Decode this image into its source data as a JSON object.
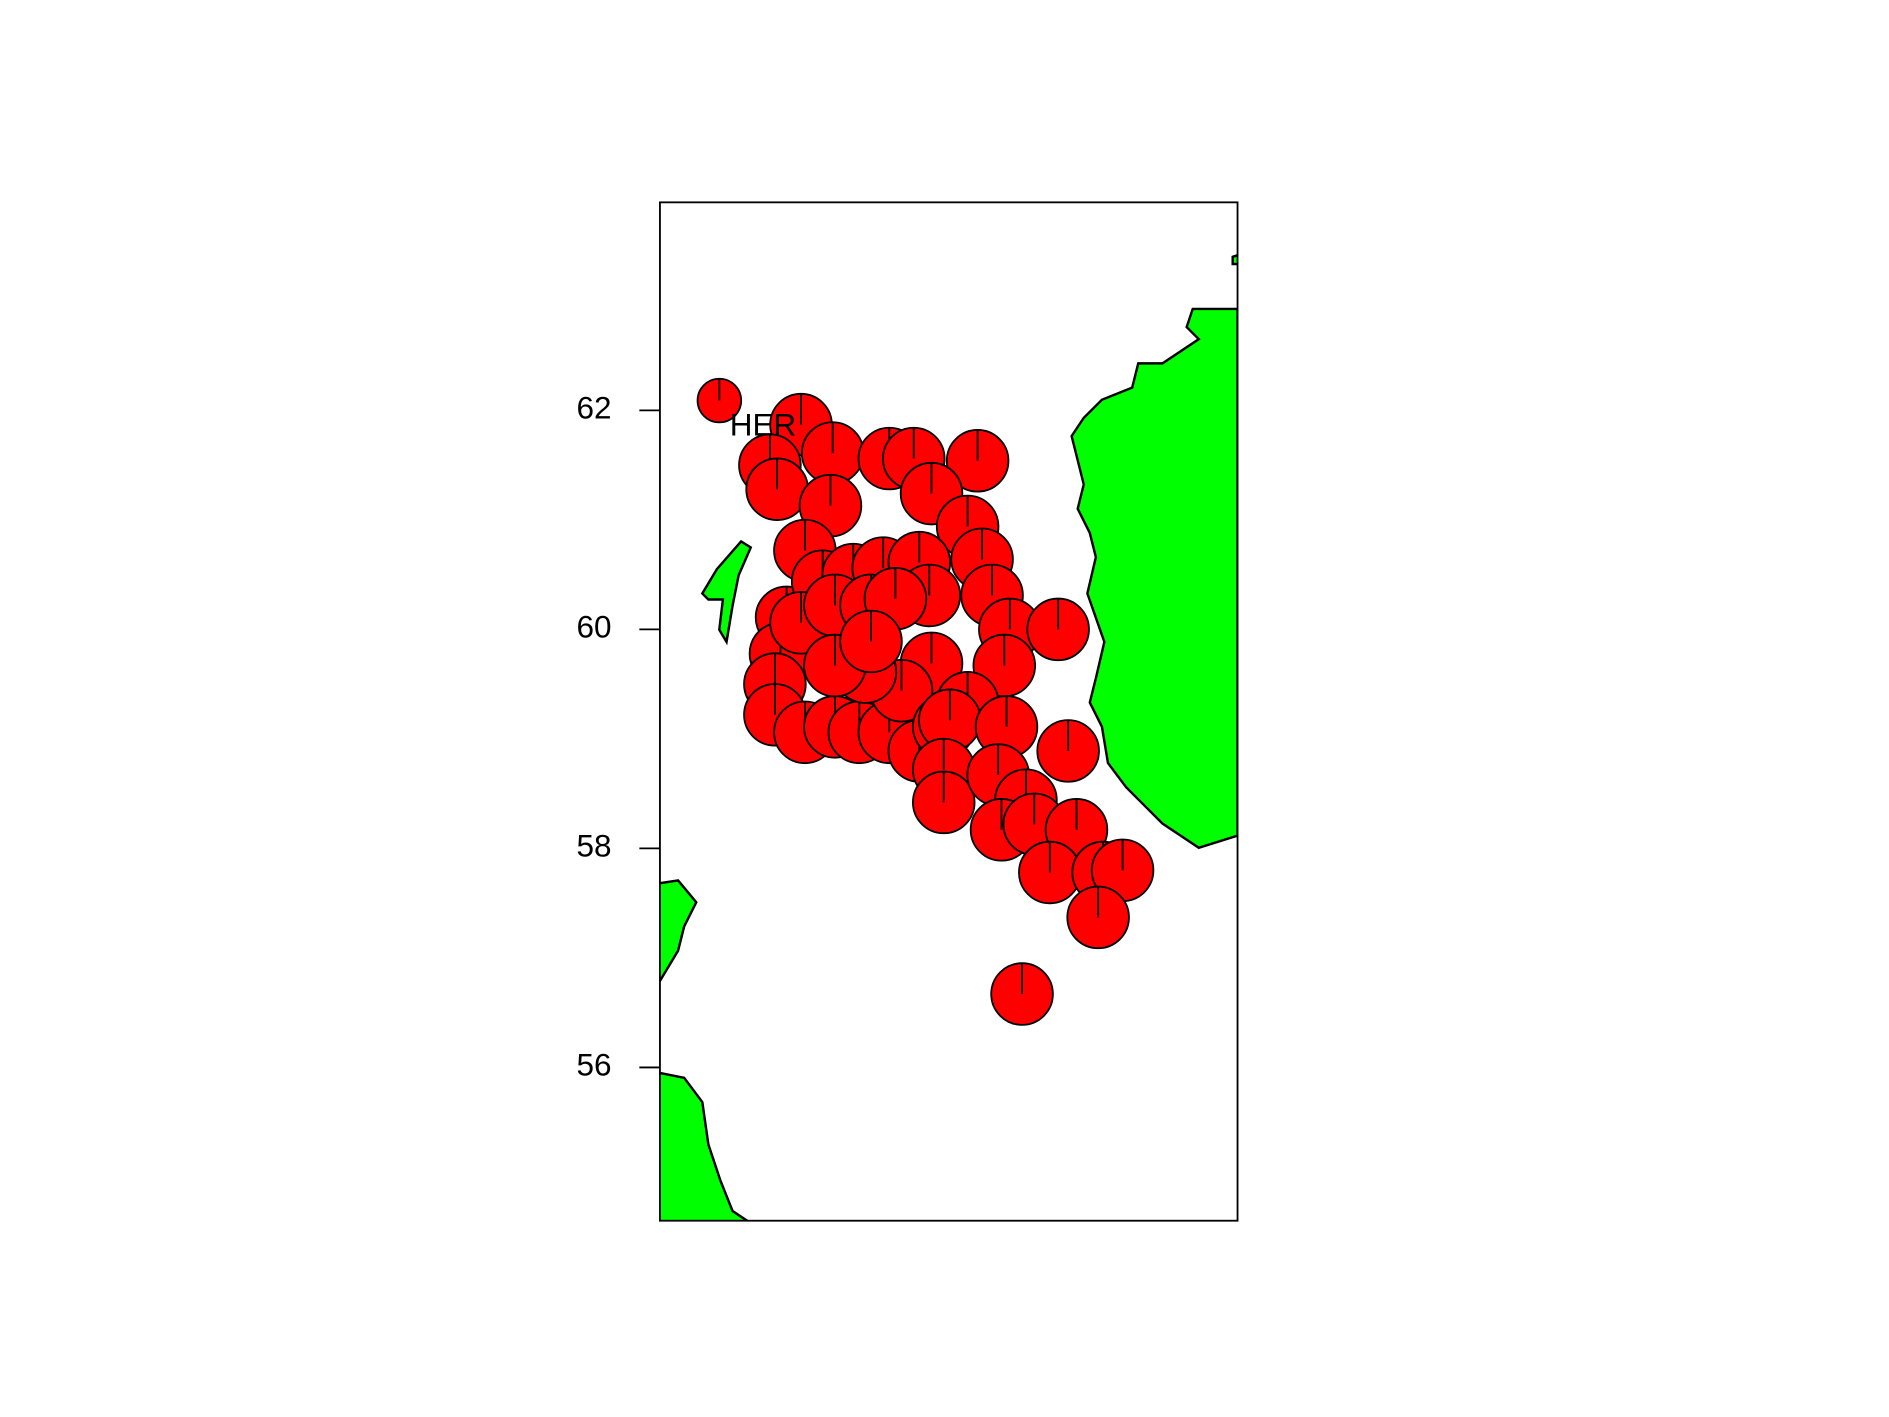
{
  "chart_data": {
    "type": "pie-map",
    "annotation": "HER",
    "x": [
      -1.33,
      0.14,
      -0.42,
      -0.29,
      0.71,
      0.67,
      1.73,
      2.17,
      3.32,
      2.49,
      3.14,
      0.21,
      3.4,
      -0.12,
      0.53,
      1.08,
      1.62,
      2.27,
      2.45,
      3.58,
      -0.23,
      0.14,
      0.75,
      1.4,
      1.84,
      3.9,
      4.77,
      -0.33,
      -0.33,
      0.21,
      0.75,
      1.19,
      1.73,
      2.27,
      2.49,
      1.95,
      1.3,
      0.75,
      1.4,
      3.8,
      3.14,
      2.71,
      2.82,
      3.84,
      4.95,
      2.71,
      2.71,
      3.69,
      4.19,
      3.75,
      4.34,
      5.1,
      4.62,
      5.58,
      5.93,
      5.49,
      4.12
    ],
    "y": [
      62.09,
      61.87,
      61.5,
      61.28,
      61.61,
      61.13,
      61.56,
      61.56,
      61.54,
      61.24,
      60.94,
      60.72,
      60.64,
      60.11,
      60.44,
      60.5,
      60.56,
      60.61,
      60.31,
      60.31,
      59.78,
      60.06,
      60.22,
      60.22,
      60.28,
      60.0,
      60.0,
      59.5,
      59.22,
      59.06,
      59.11,
      59.06,
      59.06,
      58.89,
      59.69,
      59.44,
      59.61,
      59.67,
      59.89,
      59.67,
      59.33,
      59.11,
      59.17,
      59.11,
      58.89,
      58.72,
      58.42,
      58.67,
      58.44,
      58.17,
      58.22,
      58.17,
      57.78,
      57.78,
      57.8,
      57.37,
      56.67
    ],
    "sizes": [
      1,
      2,
      2,
      2,
      2,
      2,
      2,
      2,
      2,
      2,
      2,
      2,
      2,
      2,
      2,
      2,
      2,
      2,
      2,
      2,
      2,
      2,
      2,
      2,
      2,
      2,
      2,
      2,
      2,
      2,
      2,
      2,
      2,
      2,
      2,
      2,
      2,
      2,
      2,
      2,
      2,
      2,
      2,
      2,
      2,
      2,
      2,
      2,
      2,
      2,
      2,
      2,
      2,
      2,
      2,
      2,
      2
    ],
    "color": "#ff0000",
    "land_color": "#00ff00",
    "xlim": [
      -2.4,
      8.0
    ],
    "ylim": [
      54.6,
      63.9
    ],
    "yticks": [
      56,
      58,
      60,
      62
    ]
  }
}
